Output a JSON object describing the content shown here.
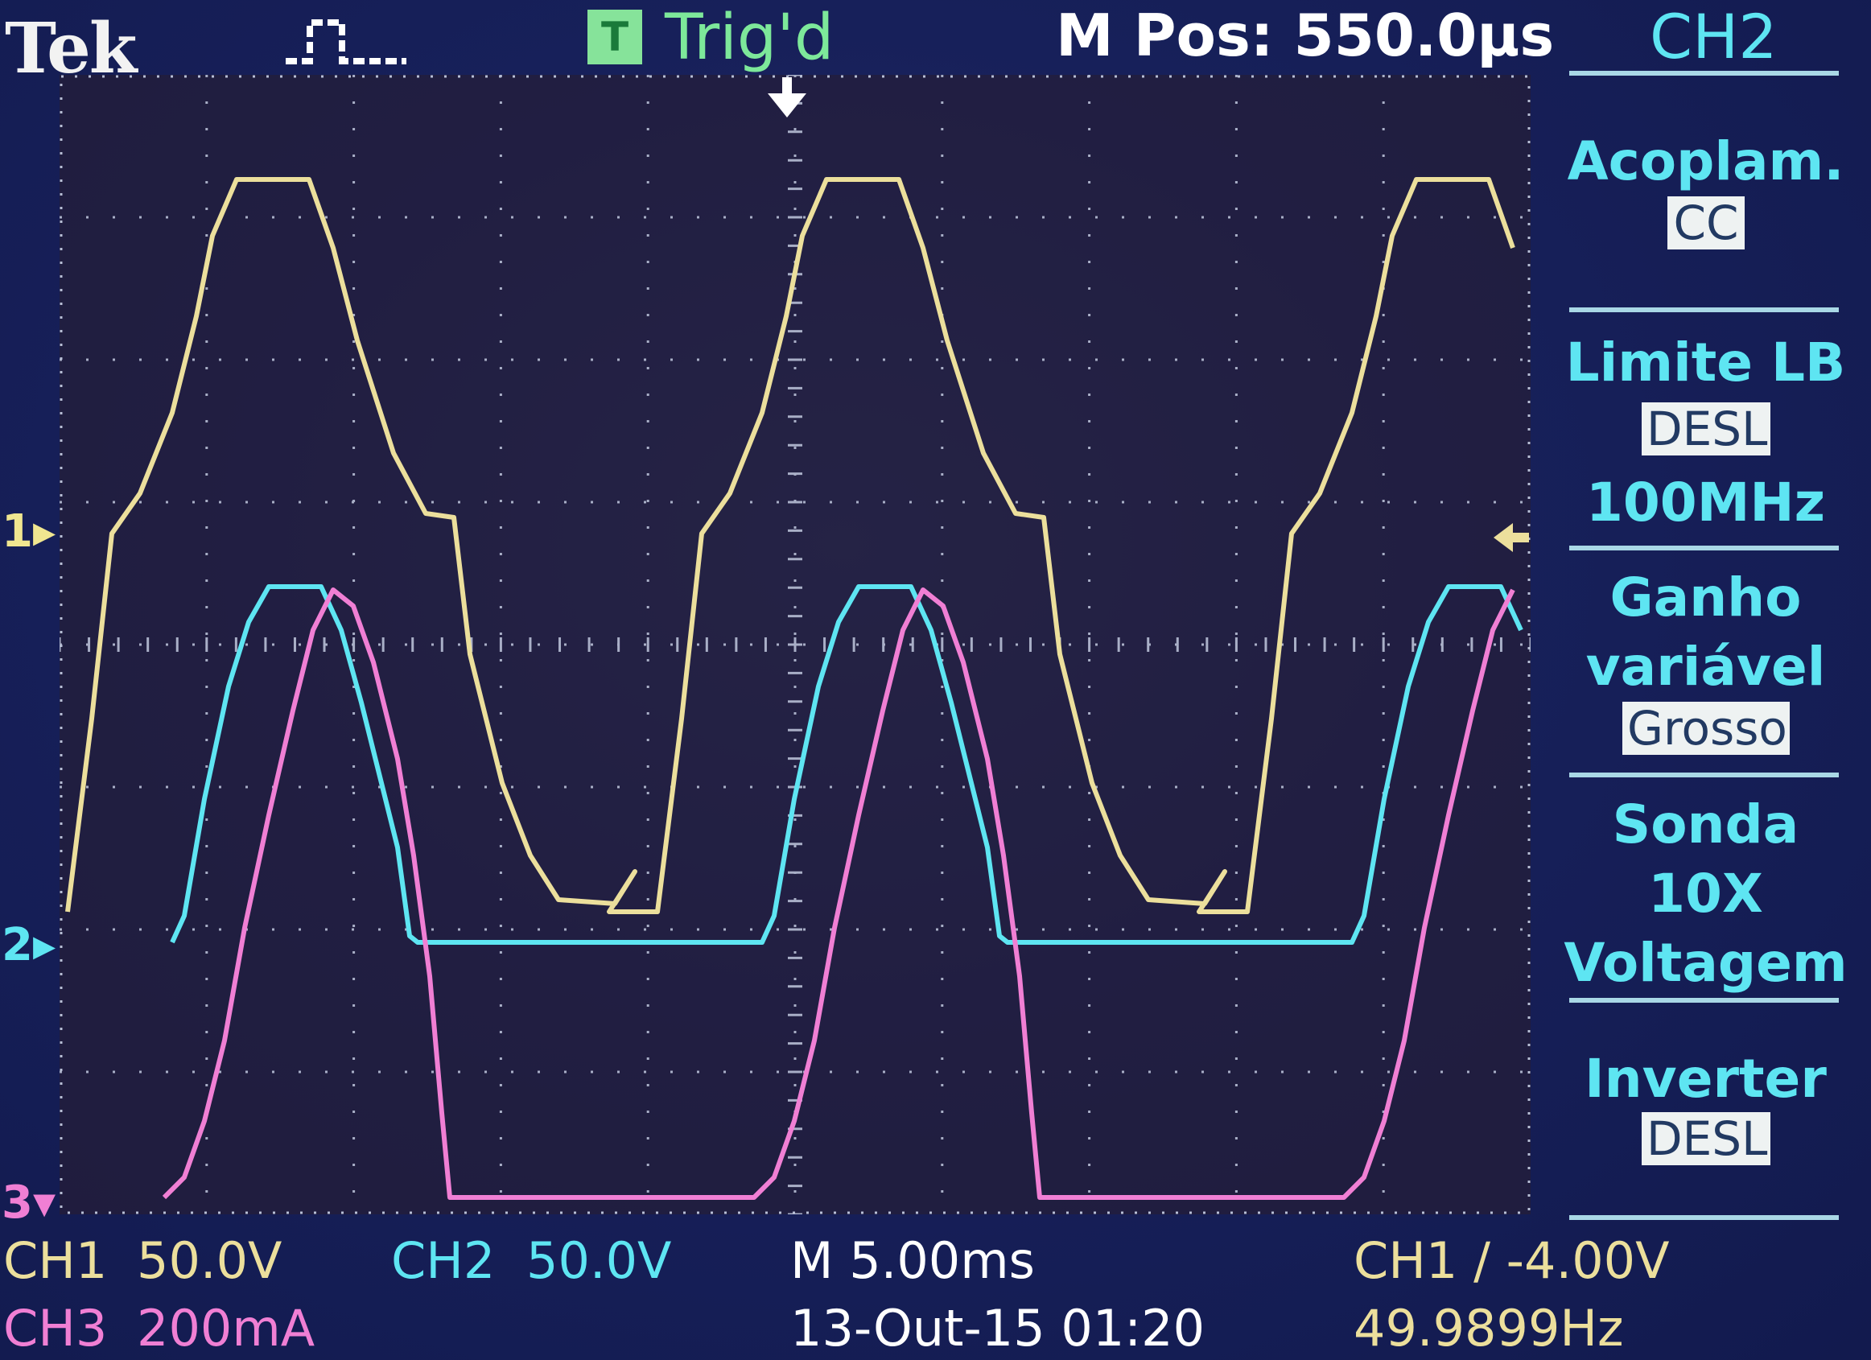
{
  "header": {
    "brand": "Tek",
    "trigger_status": "Trig'd",
    "horizontal_position": "M Pos: 550.0µs",
    "menu_title": "CH2"
  },
  "channel_markers": {
    "ch1": "1",
    "ch2": "2",
    "ch3": "3"
  },
  "side_menu": {
    "coupling": {
      "label": "Acoplam.",
      "value": "CC"
    },
    "bandwidth": {
      "label": "Limite LB",
      "value": "DESL",
      "extra": "100MHz"
    },
    "gain": {
      "label_line1": "Ganho",
      "label_line2": "variável",
      "value": "Grosso"
    },
    "probe": {
      "label": "Sonda",
      "line2": "10X",
      "line3": "Voltagem"
    },
    "invert": {
      "label": "Inverter",
      "value": "DESL"
    }
  },
  "footer": {
    "ch1_label": "CH1",
    "ch1_scale": "50.0V",
    "ch2_label": "CH2",
    "ch2_scale": "50.0V",
    "timebase": "M 5.00ms",
    "trigger": "CH1 ∕ -4.00V",
    "ch3_label": "CH3",
    "ch3_scale": "200mA",
    "datetime": "13-Out-15 01:20",
    "frequency": "49.9899Hz"
  },
  "colors": {
    "ch1": "#ecdf9c",
    "ch2": "#5ee5f2",
    "ch3": "#f07fd4",
    "background": "#17205a",
    "grid": "#b8bfd6"
  },
  "icons": {
    "pulse": "single-pulse-icon",
    "trigger": "trigger-t-icon",
    "trigger_position": "down-arrow-icon",
    "trigger_level": "left-arrow-icon"
  }
}
